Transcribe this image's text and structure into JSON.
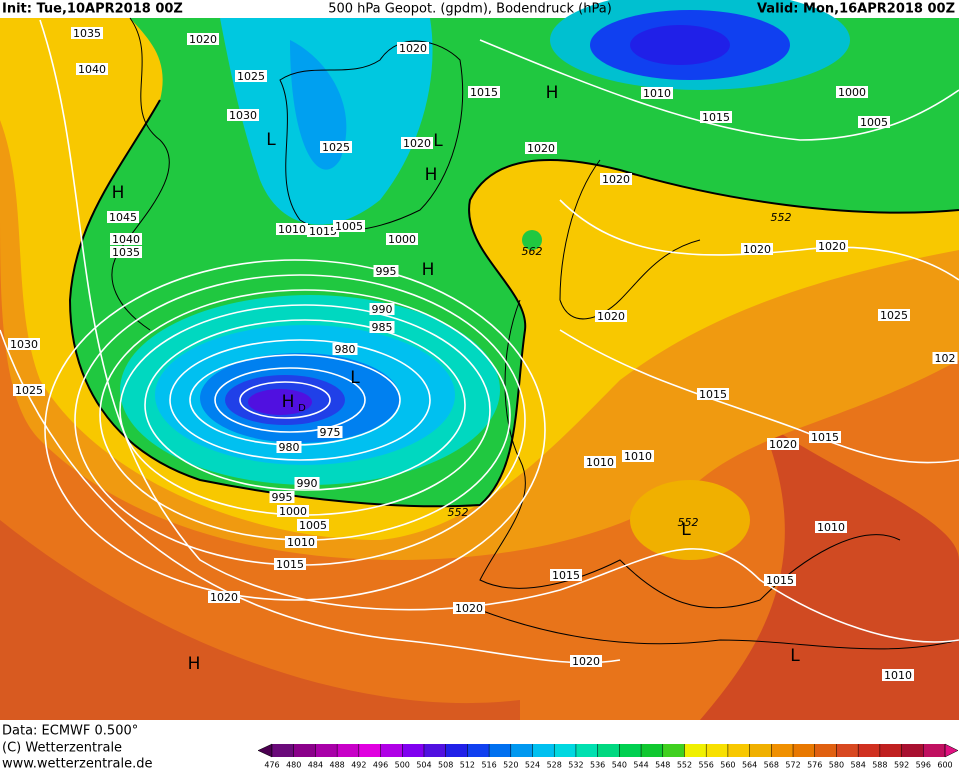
{
  "header": {
    "init": "Init: Tue,10APR2018 00Z",
    "title": "500 hPa Geopot. (gpdm), Bodendruck (hPa)",
    "valid": "Valid: Mon,16APR2018 00Z"
  },
  "isobar_labels": [
    "1035",
    "1040",
    "1020",
    "1025",
    "1030",
    "1025",
    "1020",
    "1015",
    "1020",
    "1010",
    "1015",
    "1000",
    "1005",
    "1020",
    "1020",
    "552",
    "1045",
    "1040",
    "1035",
    "1010",
    "1015",
    "1005",
    "1000",
    "562",
    "995",
    "1020",
    "1020",
    "990",
    "985",
    "1020",
    "1025",
    "1030",
    "980",
    "1025",
    "102",
    "1015",
    "975",
    "980",
    "1020",
    "1015",
    "1010",
    "1010",
    "990",
    "995",
    "1000",
    "552",
    "552",
    "1005",
    "1010",
    "1010",
    "1015",
    "1015",
    "1015",
    "1020",
    "1020",
    "1020",
    "1010"
  ],
  "pressure_centers": [
    "H",
    "L",
    "L",
    "H",
    "H",
    "H",
    "L",
    "H",
    "D",
    "H",
    "L",
    "L"
  ],
  "footer": {
    "data": "Data: ECMWF   0.500°",
    "copyright": "(C) Wetterzentrale",
    "url": "www.wetterzentrale.de"
  },
  "colorbar": {
    "labels": [
      476,
      480,
      484,
      488,
      492,
      496,
      500,
      504,
      508,
      512,
      516,
      520,
      524,
      528,
      532,
      536,
      540,
      544,
      548,
      552,
      556,
      560,
      564,
      568,
      572,
      576,
      580,
      584,
      588,
      592,
      596,
      600
    ],
    "colors": [
      "#4b0050",
      "#6a0a7a",
      "#8a008a",
      "#a800a8",
      "#c800c8",
      "#e000e0",
      "#b000e6",
      "#8000f0",
      "#5010e0",
      "#2020e8",
      "#1040f0",
      "#0070f0",
      "#0098f0",
      "#00c0f0",
      "#00d8e0",
      "#00e0b0",
      "#00d880",
      "#00d050",
      "#10c830",
      "#40d020",
      "#f0f000",
      "#f8e000",
      "#f8c800",
      "#f0b000",
      "#f09000",
      "#e87800",
      "#e06010",
      "#d84820",
      "#d03020",
      "#c02020",
      "#a81030",
      "#c01060",
      "#e01080"
    ]
  }
}
